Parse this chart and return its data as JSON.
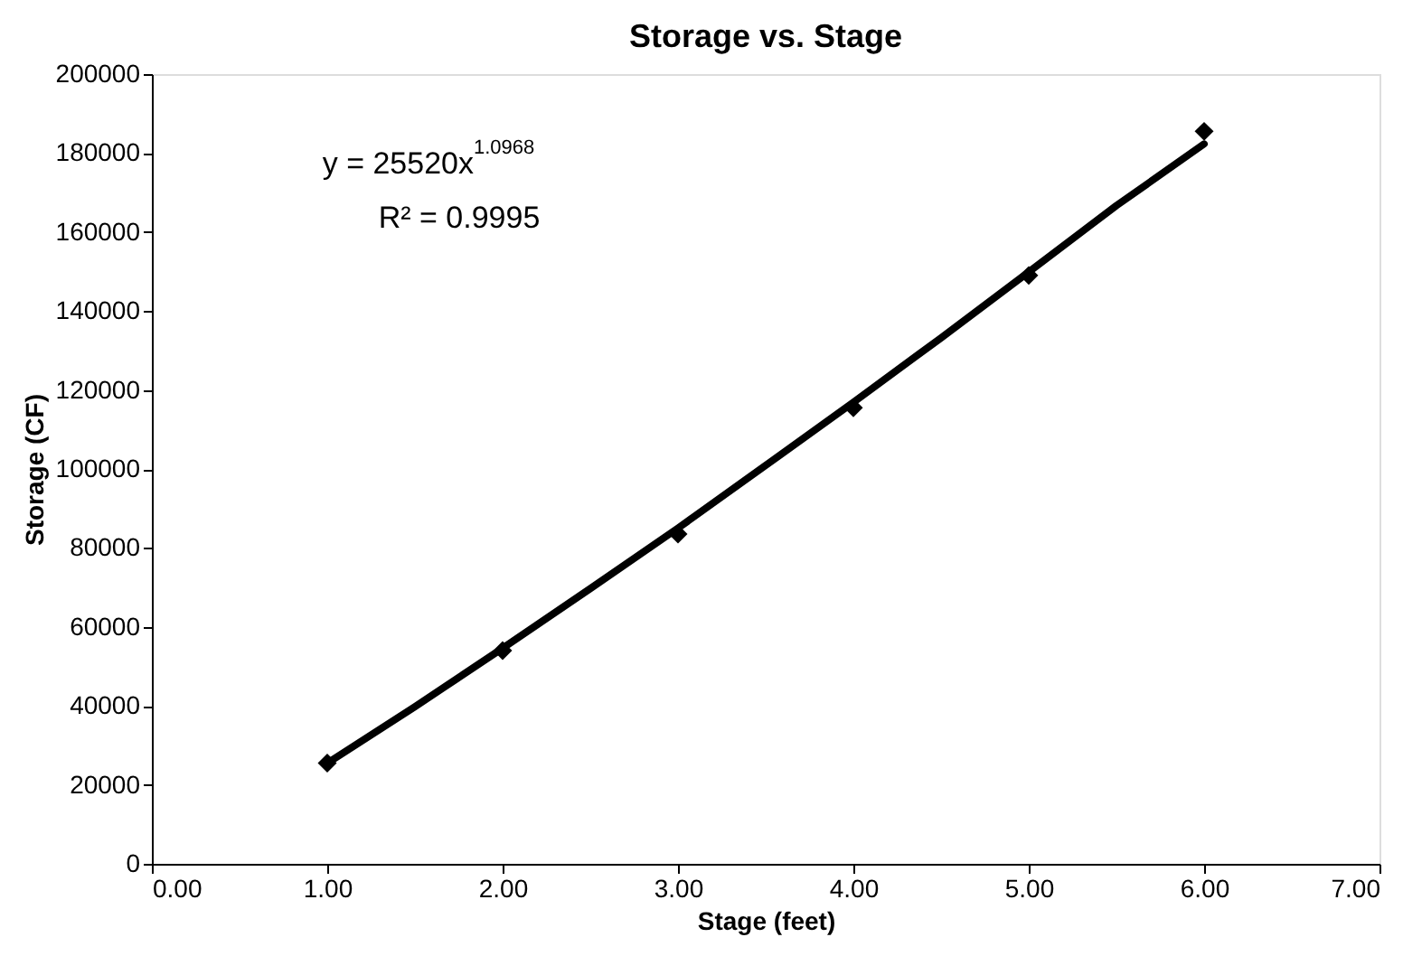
{
  "chart_data": {
    "type": "scatter",
    "title": "Storage vs. Stage",
    "xlabel": "Stage (feet)",
    "ylabel": "Storage (CF)",
    "xlim": [
      0,
      7
    ],
    "xticks": [
      {
        "value": 0,
        "label": "0.00"
      },
      {
        "value": 1,
        "label": "1.00"
      },
      {
        "value": 2,
        "label": "2.00"
      },
      {
        "value": 3,
        "label": "3.00"
      },
      {
        "value": 4,
        "label": "4.00"
      },
      {
        "value": 5,
        "label": "5.00"
      },
      {
        "value": 6,
        "label": "6.00"
      },
      {
        "value": 7,
        "label": "7.00"
      }
    ],
    "ylim": [
      0,
      200000
    ],
    "yticks": [
      0,
      20000,
      40000,
      60000,
      80000,
      100000,
      120000,
      140000,
      160000,
      180000,
      200000
    ],
    "grid": false,
    "series": [
      {
        "type": "line",
        "color": "#000000",
        "marker": "none",
        "line_style": "solid",
        "x": [
          1,
          1.5,
          2,
          2.5,
          3,
          3.5,
          4,
          4.5,
          5,
          5.5,
          6
        ],
        "values": [
          25500,
          39800,
          54600,
          69700,
          85000,
          100900,
          116900,
          133200,
          149900,
          166700,
          182300
        ]
      },
      {
        "type": "scatter",
        "color": "#000000",
        "marker": "diamond",
        "x": [
          1,
          2,
          3,
          4,
          5,
          6
        ],
        "values": [
          25500,
          54000,
          83500,
          115500,
          149000,
          185500
        ]
      }
    ],
    "annotations": [
      "y = 25520x$^{1.0968}$",
      "R² = 0.9995"
    ]
  }
}
